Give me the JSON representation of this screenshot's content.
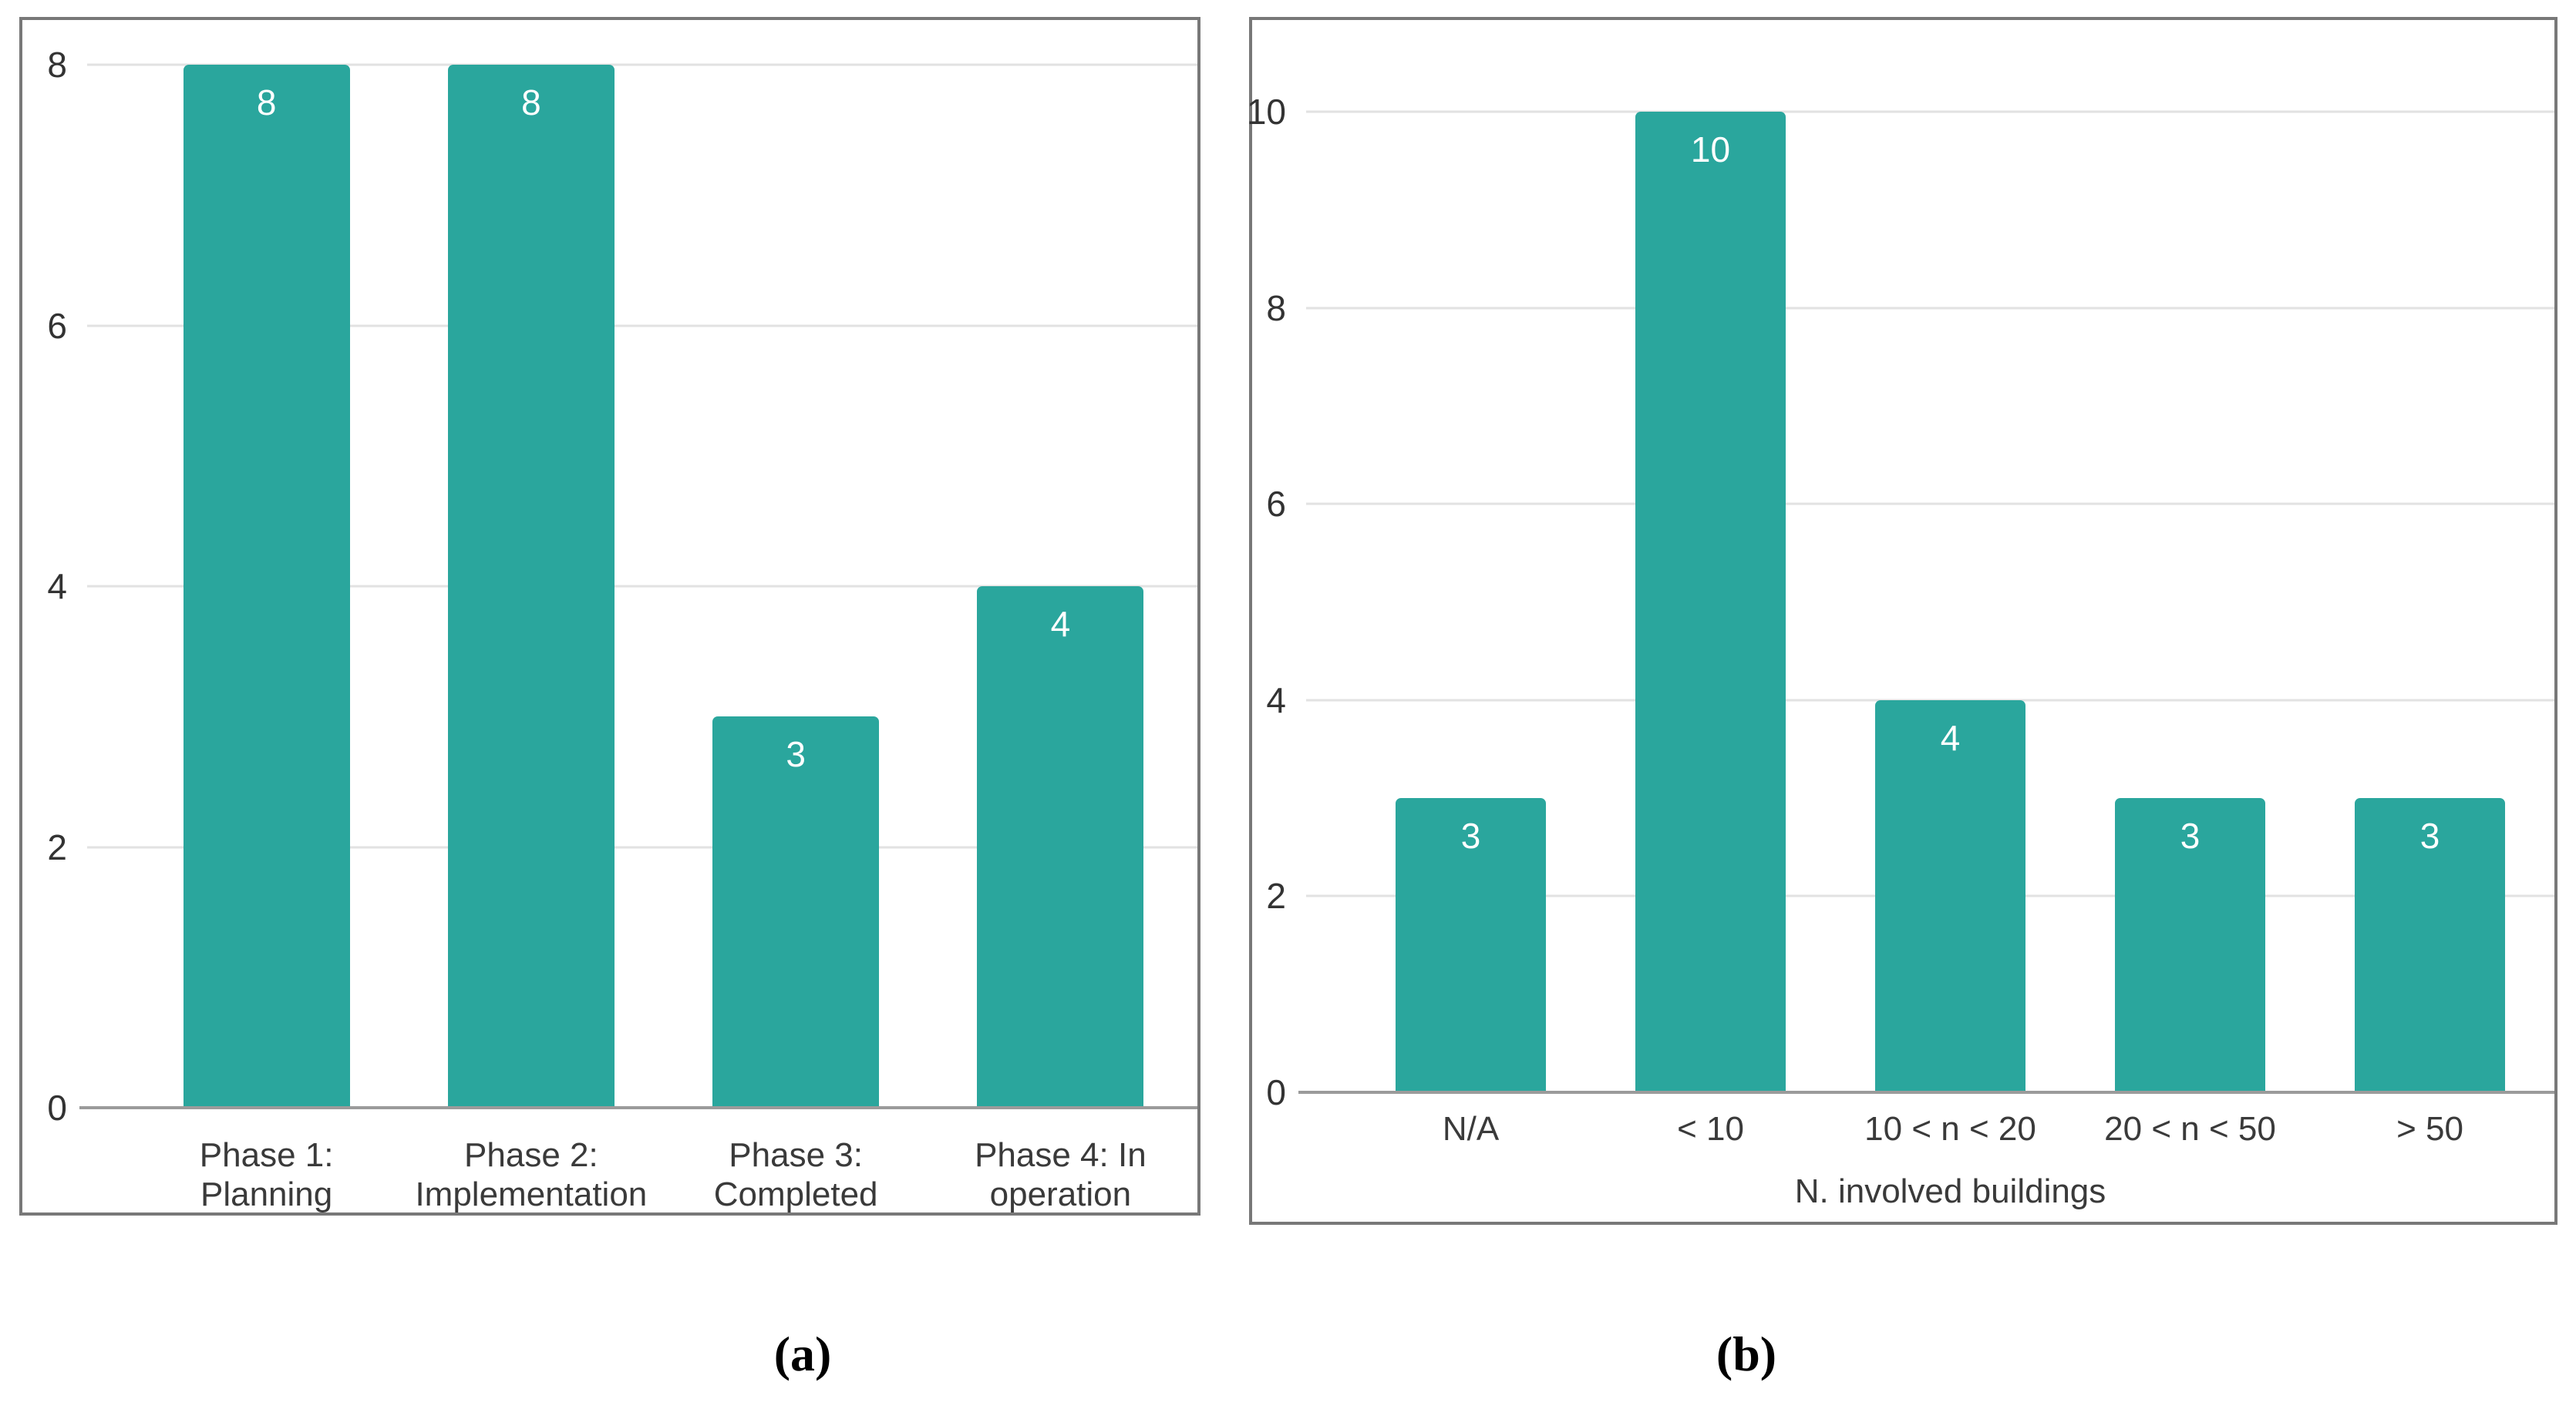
{
  "figure": {
    "caption_a": "(a)",
    "caption_b": "(b)"
  },
  "colors": {
    "bar": "#2aa69d",
    "panel_border": "#787878",
    "gridline": "#e2e2e2",
    "baseline": "#9b9b9b",
    "tick_text": "#333333",
    "category_text": "#3a3a3a",
    "bar_label_text": "#ffffff",
    "caption_text": "#000000"
  },
  "chart_data": [
    {
      "type": "bar",
      "panel": "a",
      "title": "",
      "xlabel": "",
      "ylabel": "",
      "categories": [
        "Phase 1:\nPlanning",
        "Phase 2:\nImplementation",
        "Phase 3:\nCompleted",
        "Phase 4: In\noperation"
      ],
      "values": [
        8,
        8,
        3,
        4
      ],
      "bar_labels": [
        "8",
        "8",
        "3",
        "4"
      ],
      "yticks": [
        0,
        2,
        4,
        6,
        8
      ],
      "ylim": [
        0,
        8
      ],
      "grid": true,
      "legend": false,
      "bar_color": "#2aa69d"
    },
    {
      "type": "bar",
      "panel": "b",
      "title": "",
      "xlabel": "N. involved buildings",
      "ylabel": "",
      "categories": [
        "N/A",
        "< 10",
        "10 < n < 20",
        "20 < n < 50",
        "> 50"
      ],
      "values": [
        3,
        10,
        4,
        3,
        3
      ],
      "bar_labels": [
        "3",
        "10",
        "4",
        "3",
        "3"
      ],
      "yticks": [
        0,
        2,
        4,
        6,
        8,
        10
      ],
      "ylim": [
        0,
        10
      ],
      "grid": true,
      "legend": false,
      "bar_color": "#2aa69d"
    }
  ]
}
